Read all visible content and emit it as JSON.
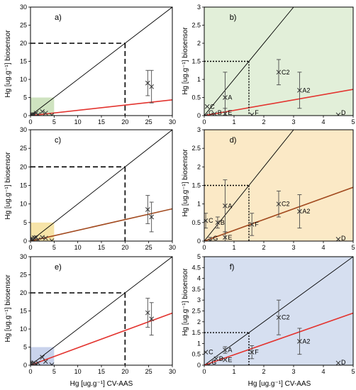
{
  "figure": {
    "ylabel": "Hg [ug.g⁻¹] biosensor",
    "xlabel": "Hg [ug.g⁻¹] CV-AAS"
  },
  "chart_data": [
    {
      "panel": "a)",
      "type": "scatter",
      "scale": "large",
      "xlim": [
        0,
        30
      ],
      "ylim": [
        0,
        30
      ],
      "xticks": [
        "0",
        "5",
        "10",
        "15",
        "20",
        "25",
        "30"
      ],
      "yticks": [
        "0",
        "5",
        "10",
        "15",
        "20",
        "25",
        "30"
      ],
      "shade": {
        "color": "#cfe3c0",
        "x": [
          0,
          5
        ],
        "y": [
          0,
          5
        ]
      },
      "regression": {
        "color": "#e3342f",
        "slope": 0.145,
        "intercept": 0
      },
      "threshold": {
        "style": "dashed",
        "x": 20,
        "y": 20
      },
      "points": [
        {
          "x": 0.1,
          "y": 0.1,
          "err": 0
        },
        {
          "x": 0.2,
          "y": 0.3,
          "err": 0
        },
        {
          "x": 0.5,
          "y": 0.2,
          "err": 0
        },
        {
          "x": 0.7,
          "y": 0.3,
          "err": 0
        },
        {
          "x": 1.2,
          "y": 0.7,
          "err": 0
        },
        {
          "x": 1.6,
          "y": 0.3,
          "err": 0
        },
        {
          "x": 2.5,
          "y": 1.1,
          "err": 0
        },
        {
          "x": 3.2,
          "y": 0.7,
          "err": 0
        },
        {
          "x": 4.5,
          "y": 0.1,
          "err": 0
        },
        {
          "x": 24.8,
          "y": 9.0,
          "err": 3.5
        },
        {
          "x": 25.6,
          "y": 8.0,
          "err": 4.5
        }
      ]
    },
    {
      "panel": "b)",
      "type": "scatter",
      "scale": "small",
      "bg": "#e2efd9",
      "xlim": [
        0,
        5
      ],
      "ylim": [
        0,
        3
      ],
      "xticks": [
        "0",
        "1",
        "2",
        "3",
        "4",
        "5"
      ],
      "yticks": [
        "0",
        "0.5",
        "1",
        "1.5",
        "2",
        "2.5",
        "3"
      ],
      "regression": {
        "color": "#e3342f",
        "slope": 0.145,
        "intercept": 0
      },
      "threshold": {
        "style": "dotted",
        "x": 1.5,
        "y": 1.5
      },
      "points": [
        {
          "label": "C",
          "x": 0.1,
          "y": 0.25,
          "err": 0
        },
        {
          "label": "G",
          "x": 0.05,
          "y": 0.0,
          "err": 0
        },
        {
          "label": "B",
          "x": 0.35,
          "y": 0.05,
          "err": 0
        },
        {
          "label": "A",
          "x": 0.7,
          "y": 0.5,
          "err": 0.7
        },
        {
          "label": "E",
          "x": 0.7,
          "y": 0.05,
          "err": 0.15
        },
        {
          "label": "F",
          "x": 1.6,
          "y": 0.02,
          "err": 0
        },
        {
          "label": "C2",
          "x": 2.5,
          "y": 1.2,
          "err": 0.35
        },
        {
          "label": "A2",
          "x": 3.2,
          "y": 0.7,
          "err": 0.5
        },
        {
          "label": "D",
          "x": 4.5,
          "y": 0.02,
          "err": 0
        }
      ]
    },
    {
      "panel": "c)",
      "type": "scatter",
      "scale": "large",
      "xlim": [
        0,
        30
      ],
      "ylim": [
        0,
        30
      ],
      "xticks": [
        "0",
        "5",
        "10",
        "15",
        "20",
        "25",
        "30"
      ],
      "yticks": [
        "0",
        "5",
        "10",
        "15",
        "20",
        "25",
        "30"
      ],
      "shade": {
        "color": "#f7e4a8",
        "x": [
          0,
          5
        ],
        "y": [
          0,
          5
        ]
      },
      "regression": {
        "color": "#a24a1f",
        "slope": 0.29,
        "intercept": 0
      },
      "threshold": {
        "style": "dashed",
        "x": 20,
        "y": 20
      },
      "points": [
        {
          "x": 0.1,
          "y": 0.5,
          "err": 0
        },
        {
          "x": 0.3,
          "y": 0.8,
          "err": 0
        },
        {
          "x": 0.5,
          "y": 0.2,
          "err": 0
        },
        {
          "x": 0.8,
          "y": 0.9,
          "err": 0
        },
        {
          "x": 1.2,
          "y": 1.0,
          "err": 0
        },
        {
          "x": 1.6,
          "y": 0.4,
          "err": 0
        },
        {
          "x": 2.5,
          "y": 1.0,
          "err": 0
        },
        {
          "x": 3.2,
          "y": 0.8,
          "err": 0
        },
        {
          "x": 4.5,
          "y": 0.1,
          "err": 0
        },
        {
          "x": 24.8,
          "y": 8.5,
          "err": 3.8
        },
        {
          "x": 25.6,
          "y": 6.5,
          "err": 4.0
        }
      ]
    },
    {
      "panel": "d)",
      "type": "scatter",
      "scale": "small",
      "bg": "#fbe9c6",
      "xlim": [
        0,
        5
      ],
      "ylim": [
        0,
        3
      ],
      "xticks": [
        "0",
        "1",
        "2",
        "3",
        "4",
        "5"
      ],
      "yticks": [
        "0",
        "0.5",
        "1",
        "1.5",
        "2",
        "2.5",
        "3"
      ],
      "regression": {
        "color": "#a24a1f",
        "slope": 0.29,
        "intercept": 0
      },
      "threshold": {
        "style": "dotted",
        "x": 1.5,
        "y": 1.5
      },
      "points": [
        {
          "label": "C",
          "x": 0.05,
          "y": 0.55,
          "err": 0.2
        },
        {
          "label": "G",
          "x": 0.2,
          "y": 0.0,
          "err": 0.1
        },
        {
          "label": "B",
          "x": 0.45,
          "y": 0.5,
          "err": 0.15
        },
        {
          "label": "A",
          "x": 0.7,
          "y": 0.95,
          "err": 0.7
        },
        {
          "label": "E",
          "x": 0.7,
          "y": 0.1,
          "err": 0.15
        },
        {
          "label": "F",
          "x": 1.6,
          "y": 0.45,
          "err": 0.3
        },
        {
          "label": "C2",
          "x": 2.5,
          "y": 1.0,
          "err": 0.35
        },
        {
          "label": "A2",
          "x": 3.2,
          "y": 0.8,
          "err": 0.45
        },
        {
          "label": "D",
          "x": 4.5,
          "y": 0.05,
          "err": 0
        }
      ]
    },
    {
      "panel": "e)",
      "type": "scatter",
      "scale": "large",
      "xlim": [
        0,
        30
      ],
      "ylim": [
        0,
        30
      ],
      "xticks": [
        "0",
        "5",
        "10",
        "15",
        "20",
        "25",
        "30"
      ],
      "yticks": [
        "0",
        "5",
        "10",
        "15",
        "20",
        "25",
        "30"
      ],
      "shade": {
        "color": "#c9d3ec",
        "x": [
          0,
          5
        ],
        "y": [
          0,
          5
        ]
      },
      "regression": {
        "color": "#e3342f",
        "slope": 0.48,
        "intercept": 0
      },
      "threshold": {
        "style": "dashed",
        "x": 20,
        "y": 20
      },
      "points": [
        {
          "x": 0.1,
          "y": 0.6,
          "err": 0
        },
        {
          "x": 0.3,
          "y": 0.3,
          "err": 0
        },
        {
          "x": 0.5,
          "y": 0.5,
          "err": 0
        },
        {
          "x": 0.7,
          "y": 0.7,
          "err": 0
        },
        {
          "x": 1.2,
          "y": 0.3,
          "err": 0
        },
        {
          "x": 1.6,
          "y": 0.6,
          "err": 0
        },
        {
          "x": 2.5,
          "y": 2.2,
          "err": 0
        },
        {
          "x": 3.2,
          "y": 1.0,
          "err": 0
        },
        {
          "x": 4.5,
          "y": 0.1,
          "err": 0
        },
        {
          "x": 24.8,
          "y": 14.5,
          "err": 4.0
        },
        {
          "x": 25.6,
          "y": 12.8,
          "err": 4.5
        }
      ]
    },
    {
      "panel": "f)",
      "type": "scatter",
      "scale": "small",
      "bg": "#d6dff0",
      "xlim": [
        0,
        5
      ],
      "ylim": [
        0,
        5
      ],
      "xticks": [
        "0",
        "1",
        "2",
        "3",
        "4",
        "5"
      ],
      "yticks": [
        "0",
        "0.5",
        "1",
        "1.5",
        "2",
        "2.5",
        "3",
        "3.5",
        "4",
        "4.5",
        "5"
      ],
      "regression": {
        "color": "#e3342f",
        "slope": 0.48,
        "intercept": 0
      },
      "threshold": {
        "style": "dotted",
        "x": 1.5,
        "y": 1.5
      },
      "points": [
        {
          "label": "C",
          "x": 0.05,
          "y": 0.6,
          "err": 0
        },
        {
          "label": "G",
          "x": 0.15,
          "y": 0.0,
          "err": 0
        },
        {
          "label": "B",
          "x": 0.4,
          "y": 0.3,
          "err": 0
        },
        {
          "label": "A",
          "x": 0.7,
          "y": 0.7,
          "err": 0.15
        },
        {
          "label": "E",
          "x": 0.7,
          "y": 0.25,
          "err": 0
        },
        {
          "label": "F",
          "x": 1.6,
          "y": 0.6,
          "err": 0.3
        },
        {
          "label": "C2",
          "x": 2.5,
          "y": 2.2,
          "err": 0.8
        },
        {
          "label": "A2",
          "x": 3.2,
          "y": 1.1,
          "err": 0.6
        },
        {
          "label": "D",
          "x": 4.5,
          "y": 0.1,
          "err": 0
        }
      ]
    }
  ]
}
